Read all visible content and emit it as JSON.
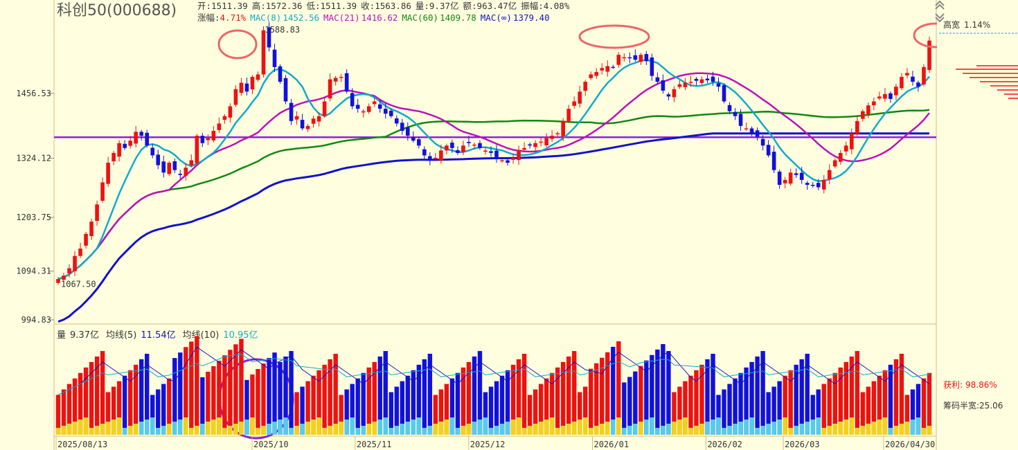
{
  "header": {
    "title": "科创50(000688)",
    "open_label": "开:",
    "open": "1511.39",
    "high_label": "高:",
    "high": "1572.36",
    "low_label": "低:",
    "low": "1511.39",
    "close_label": "收:",
    "close": "1563.86",
    "volume_label": "量:",
    "volume": "9.37亿",
    "amount_label": "额:",
    "amount": "963.47亿",
    "amplitude_label": "振幅:",
    "amplitude": "4.08%",
    "change_label": "涨幅:",
    "change": "4.71%",
    "mac8_label": "MAC(8)",
    "mac8": "1452.56",
    "mac21_label": "MAC(21)",
    "mac21": "1416.62",
    "mac60_label": "MAC(60)",
    "mac60": "1409.78",
    "macinf_label": "MAC(∞)",
    "macinf": "1379.40"
  },
  "volume_header": {
    "label": "量",
    "value": "9.37亿",
    "ma5_label": "均线(5)",
    "ma5": "11.54亿",
    "ma10_label": "均线(10)",
    "ma10": "10.95亿"
  },
  "right_panel": {
    "gaokuan_label": "高宽",
    "gaokuan_value": "1.14%",
    "profit_label": "获利:",
    "profit_value": "98.86%",
    "chip_label": "筹码半宽:",
    "chip_value": "25.06"
  },
  "colors": {
    "up": "#EE1111",
    "down": "#1111DD",
    "ma8": "#11AACC",
    "ma21": "#BB11BB",
    "ma60": "#118811",
    "mainf": "#1111CC",
    "hline": "#8822DD",
    "annotation": "#EE6666",
    "axis_text": "#333333",
    "background": "#FFFFE0"
  },
  "chart_data": {
    "type": "candlestick",
    "title": "科创50(000688)",
    "price_axis_ticks": [
      1456.53,
      1324.12,
      1203.75,
      1094.31,
      994.83
    ],
    "y_range": [
      994.83,
      1588.83
    ],
    "date_ticks": [
      "2025/08/13",
      "2025/10",
      "2025/11",
      "2025/12",
      "2026/01",
      "2026/02",
      "2026/03",
      "2026/04/30"
    ],
    "labeled_extremes": {
      "high": 1588.83,
      "low": 1067.5
    },
    "horizontal_line": 1367,
    "candles_close": [
      1078,
      1085,
      1100,
      1125,
      1140,
      1170,
      1195,
      1230,
      1275,
      1315,
      1335,
      1355,
      1345,
      1360,
      1378,
      1370,
      1350,
      1330,
      1310,
      1295,
      1315,
      1300,
      1290,
      1305,
      1320,
      1370,
      1355,
      1365,
      1380,
      1395,
      1410,
      1430,
      1465,
      1478,
      1460,
      1490,
      1495,
      1585,
      1550,
      1510,
      1480,
      1440,
      1400,
      1410,
      1385,
      1390,
      1405,
      1410,
      1440,
      1485,
      1488,
      1490,
      1460,
      1430,
      1425,
      1420,
      1430,
      1440,
      1425,
      1415,
      1410,
      1395,
      1380,
      1370,
      1360,
      1350,
      1330,
      1320,
      1325,
      1340,
      1350,
      1345,
      1335,
      1350,
      1355,
      1352,
      1345,
      1340,
      1335,
      1325,
      1320,
      1315,
      1325,
      1340,
      1345,
      1350,
      1355,
      1358,
      1365,
      1370,
      1375,
      1400,
      1425,
      1440,
      1460,
      1480,
      1495,
      1500,
      1508,
      1512,
      1510,
      1535,
      1530,
      1528,
      1525,
      1535,
      1522,
      1492,
      1480,
      1462,
      1450,
      1465,
      1475,
      1478,
      1480,
      1482,
      1485,
      1483,
      1480,
      1470,
      1440,
      1420,
      1410,
      1390,
      1385,
      1375,
      1368,
      1350,
      1330,
      1300,
      1270,
      1280,
      1295,
      1290,
      1280,
      1270,
      1268,
      1265,
      1280,
      1300,
      1320,
      1335,
      1350,
      1375,
      1400,
      1420,
      1432,
      1440,
      1450,
      1455,
      1445,
      1470,
      1490,
      1498,
      1480,
      1470,
      1510,
      1564
    ],
    "volume_axis_unit": "亿",
    "volume_last": 9.37,
    "volume_ma5_last": 11.54,
    "volume_ma10_last": 10.95
  }
}
